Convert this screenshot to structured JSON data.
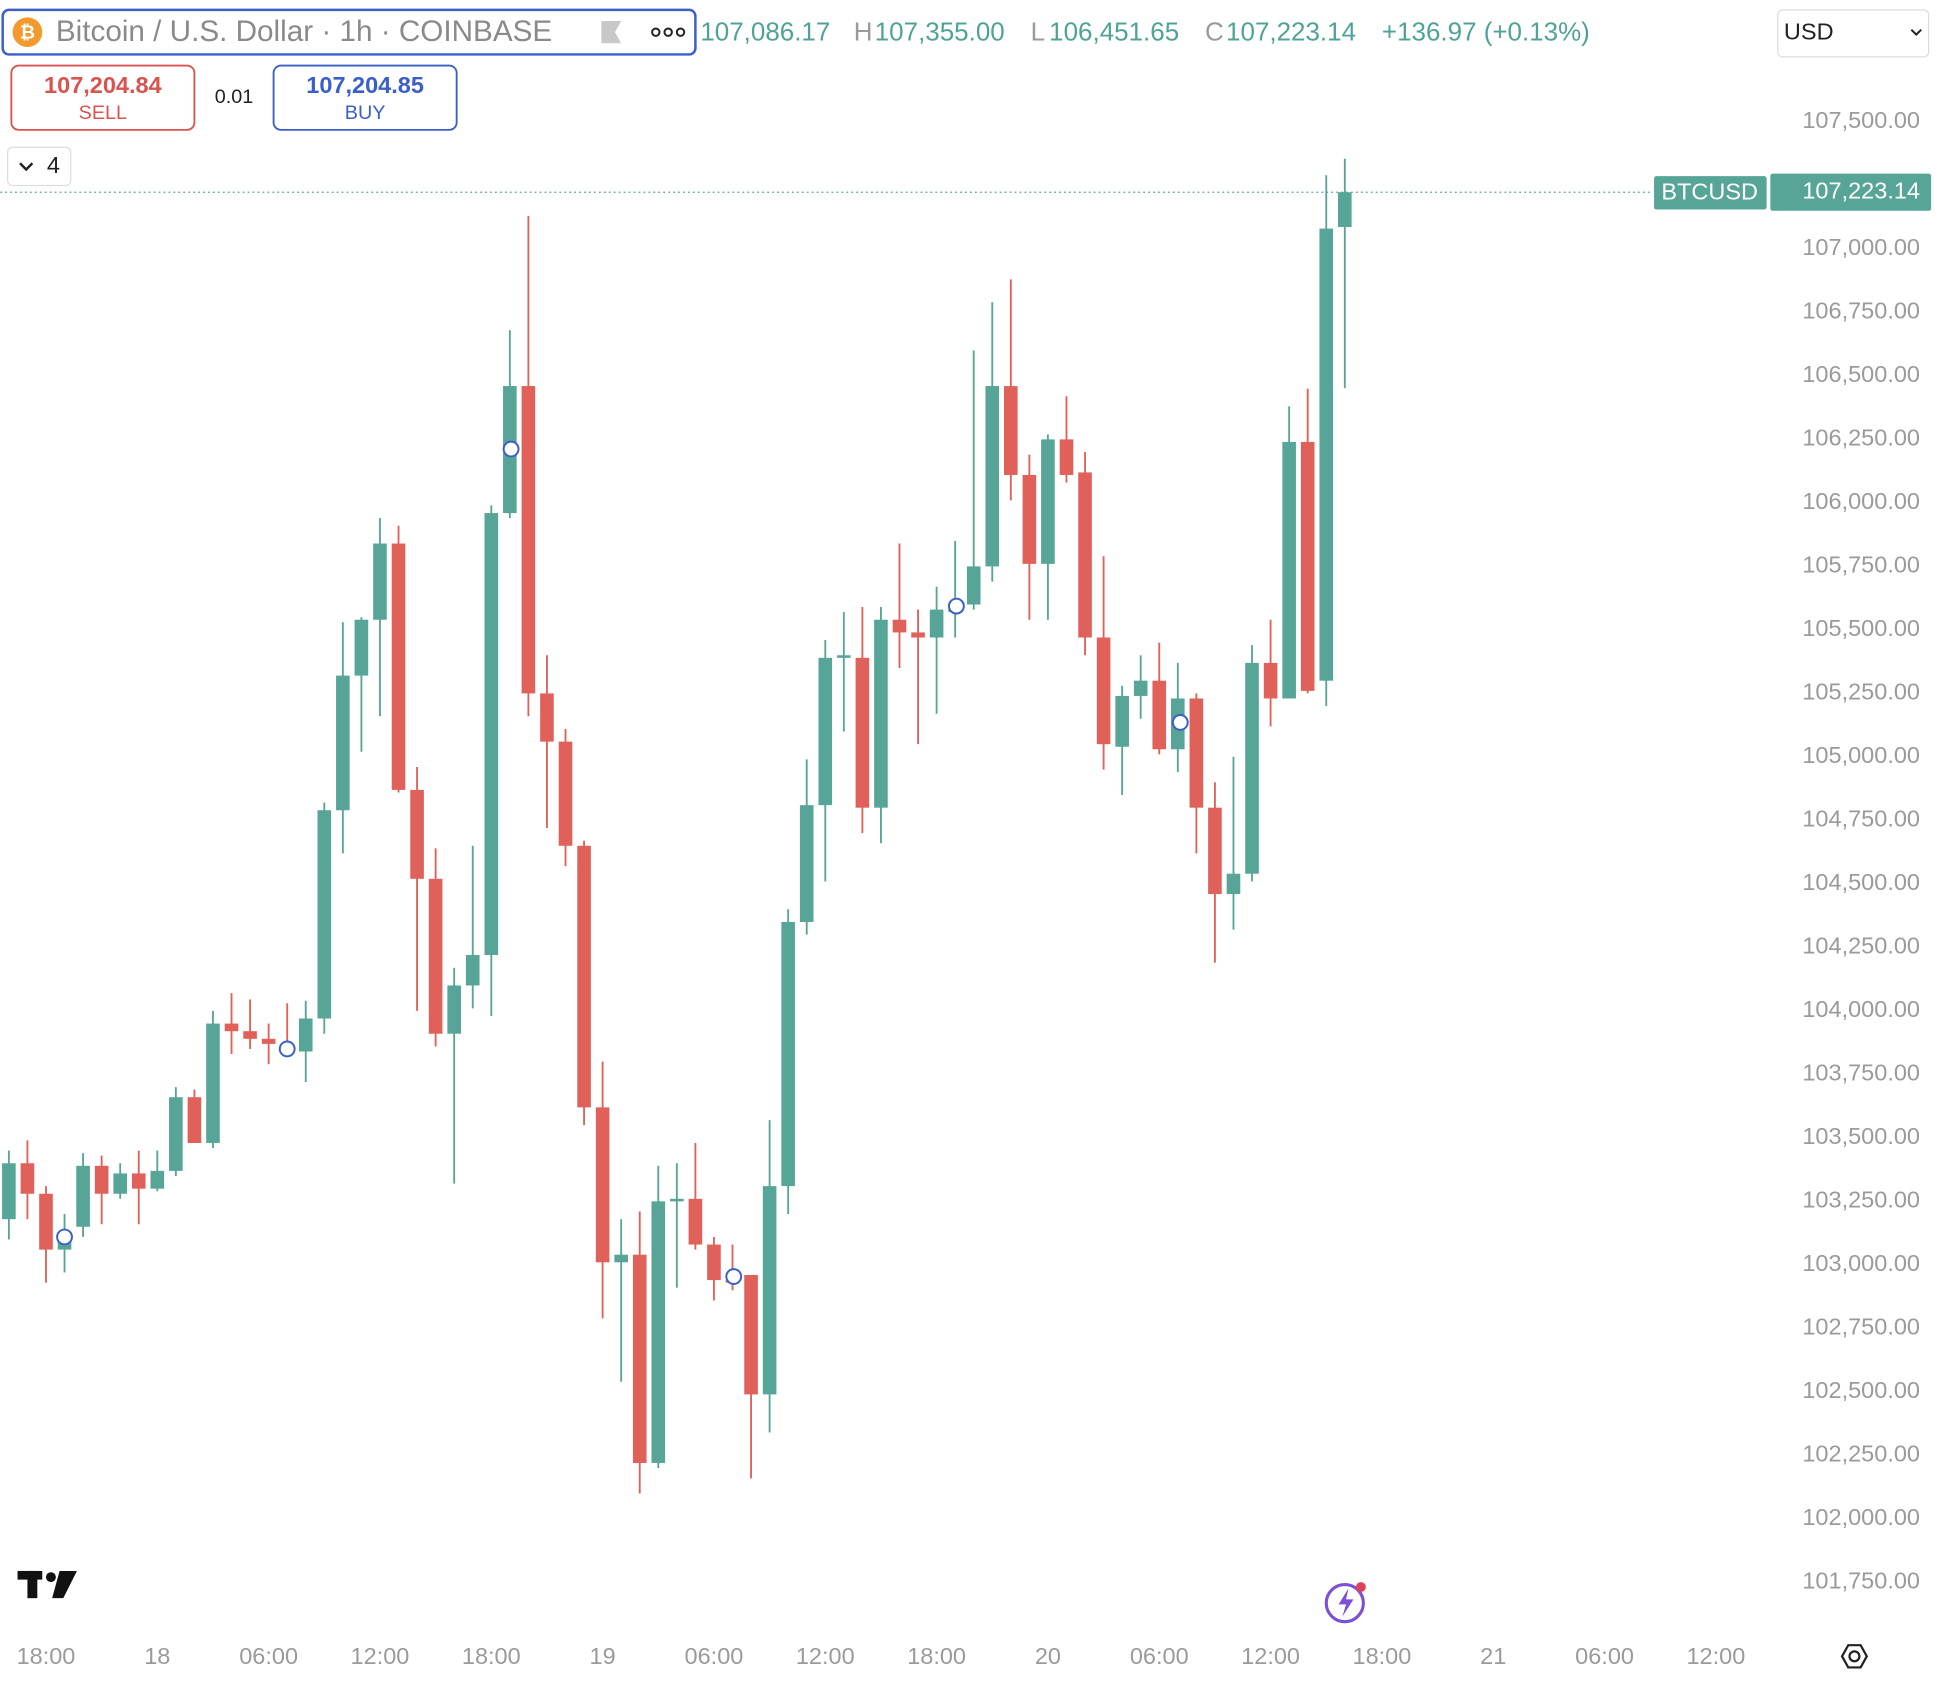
{
  "header": {
    "symbol": "Bitcoin / U.S. Dollar · 1h · COINBASE",
    "legend": [
      "107,086.17",
      "H",
      "107,355.00",
      "L",
      "106,451.65",
      "C",
      "107,223.14",
      "+136.97 (+0.13%)"
    ],
    "sell_price": "107,204.84",
    "sell": "SELL",
    "spread": "0.01",
    "buy_price": "107,204.85",
    "buy": "BUY",
    "indicators": "4",
    "currency": "USD"
  },
  "chart_data": {
    "type": "candlestick",
    "symbol_label": "BTCUSD",
    "last_price_label": "107,223.14",
    "up_color": "#57a597",
    "down_color": "#e0605a",
    "categories": [
      null,
      null,
      "18:00",
      null,
      null,
      null,
      null,
      null,
      "18",
      null,
      null,
      null,
      null,
      null,
      "06:00",
      null,
      null,
      null,
      null,
      null,
      "12:00",
      null,
      null,
      null,
      null,
      null,
      "18:00",
      null,
      null,
      null,
      null,
      null,
      "19",
      null,
      null,
      null,
      null,
      null,
      "06:00",
      null,
      null,
      null,
      null,
      null,
      "12:00",
      null,
      null,
      null,
      null,
      null,
      "18:00",
      null,
      null,
      null,
      null,
      null,
      "20",
      null,
      null,
      null,
      null,
      null,
      "06:00",
      null,
      null,
      null,
      null,
      null,
      "12:00",
      null,
      null,
      null,
      null,
      null,
      "18:00",
      null,
      null,
      null,
      null,
      null,
      "21",
      null,
      null,
      null,
      null,
      null,
      "06:00",
      null,
      null,
      null,
      null,
      null,
      "12:00"
    ],
    "open": [
      103180,
      103400,
      103280,
      103060,
      103150,
      103390,
      103280,
      103360,
      103300,
      103370,
      103660,
      103480,
      103950,
      103920,
      103890,
      103870,
      103840,
      103970,
      104790,
      105320,
      105540,
      105840,
      104870,
      104520,
      103910,
      104100,
      104220,
      105960,
      106460,
      105250,
      105060,
      104650,
      103620,
      103010,
      103040,
      102220,
      103250,
      103260,
      103080,
      102940,
      102960,
      102490,
      103310,
      104350,
      104810,
      105390,
      105390,
      104800,
      105540,
      105490,
      105470,
      105570,
      105600,
      105750,
      106460,
      106110,
      105760,
      106250,
      106120,
      105470,
      105040,
      105240,
      105300,
      105030,
      105230,
      104800,
      104460,
      104540,
      105370,
      105230,
      106240,
      105300,
      107086.17,
      null,
      null,
      null,
      null,
      null,
      null,
      null,
      null,
      null,
      null,
      null,
      null,
      null,
      null,
      null,
      null,
      null,
      null,
      null,
      null
    ],
    "high": [
      103450,
      103490,
      103310,
      103200,
      103440,
      103430,
      103400,
      103450,
      103450,
      103700,
      103690,
      104000,
      104070,
      104045,
      103950,
      104030,
      104040,
      104820,
      105530,
      105550,
      105940,
      105910,
      104960,
      104640,
      104170,
      104650,
      105990,
      106680,
      107130,
      105400,
      105110,
      104670,
      103800,
      103180,
      103210,
      103390,
      103400,
      103480,
      103110,
      103080,
      102960,
      103570,
      104400,
      104990,
      105460,
      105570,
      105590,
      105590,
      105840,
      105580,
      105670,
      105850,
      106600,
      106790,
      106880,
      106190,
      106270,
      106420,
      106200,
      105790,
      105280,
      105400,
      105450,
      105370,
      105250,
      104900,
      105000,
      105440,
      105540,
      106380,
      106450,
      107290,
      107355,
      null,
      null,
      null,
      null,
      null,
      null,
      null,
      null,
      null,
      null,
      null,
      null,
      null,
      null,
      null,
      null,
      null,
      null,
      null,
      null
    ],
    "low": [
      103100,
      103180,
      102930,
      102970,
      103110,
      103160,
      103260,
      103160,
      103290,
      103350,
      103480,
      103460,
      103830,
      103850,
      103790,
      103830,
      103720,
      103910,
      104620,
      105020,
      105160,
      104860,
      104000,
      103860,
      103320,
      104010,
      103980,
      105940,
      105160,
      104720,
      104570,
      103550,
      102790,
      102540,
      102100,
      102200,
      102910,
      103060,
      102860,
      102900,
      102160,
      102340,
      103200,
      104300,
      104510,
      105100,
      104700,
      104660,
      105350,
      105050,
      105170,
      105470,
      105580,
      105690,
      106010,
      105540,
      105540,
      106080,
      105400,
      104950,
      104850,
      105150,
      105010,
      104940,
      104620,
      104190,
      104320,
      104510,
      105120,
      105230,
      105250,
      105200,
      106451.65,
      null,
      null,
      null,
      null,
      null,
      null,
      null,
      null,
      null,
      null,
      null,
      null,
      null,
      null,
      null,
      null,
      null,
      null,
      null,
      null
    ],
    "close": [
      103400,
      103280,
      103060,
      103130,
      103390,
      103280,
      103360,
      103300,
      103370,
      103660,
      103480,
      103950,
      103920,
      103890,
      103870,
      103850,
      103970,
      104790,
      105320,
      105540,
      105840,
      104870,
      104520,
      103910,
      104100,
      104220,
      105960,
      106460,
      105250,
      105060,
      104650,
      103620,
      103010,
      103040,
      102220,
      103250,
      103260,
      103080,
      102940,
      102930,
      102490,
      103310,
      104350,
      104810,
      105390,
      105400,
      104800,
      105540,
      105490,
      105470,
      105580,
      105600,
      105750,
      106460,
      106110,
      105760,
      106250,
      106110,
      105470,
      105050,
      105240,
      105300,
      105030,
      105230,
      104800,
      104460,
      104540,
      105370,
      105230,
      106240,
      105260,
      107080,
      107223.14,
      null,
      null,
      null,
      null,
      null,
      null,
      null,
      null,
      null,
      null,
      null,
      null,
      null,
      null,
      null,
      null,
      null,
      null,
      null,
      null
    ],
    "ylim": [
      101600,
      107980
    ],
    "yticks": [
      {
        "value": 101750,
        "label": "101,750.00"
      },
      {
        "value": 102000,
        "label": "102,000.00"
      },
      {
        "value": 102250,
        "label": "102,250.00"
      },
      {
        "value": 102500,
        "label": "102,500.00"
      },
      {
        "value": 102750,
        "label": "102,750.00"
      },
      {
        "value": 103000,
        "label": "103,000.00"
      },
      {
        "value": 103250,
        "label": "103,250.00"
      },
      {
        "value": 103500,
        "label": "103,500.00"
      },
      {
        "value": 103750,
        "label": "103,750.00"
      },
      {
        "value": 104000,
        "label": "104,000.00"
      },
      {
        "value": 104250,
        "label": "104,250.00"
      },
      {
        "value": 104500,
        "label": "104,500.00"
      },
      {
        "value": 104750,
        "label": "104,750.00"
      },
      {
        "value": 105000,
        "label": "105,000.00"
      },
      {
        "value": 105250,
        "label": "105,250.00"
      },
      {
        "value": 105500,
        "label": "105,500.00"
      },
      {
        "value": 105750,
        "label": "105,750.00"
      },
      {
        "value": 106000,
        "label": "106,000.00"
      },
      {
        "value": 106250,
        "label": "106,250.00"
      },
      {
        "value": 106500,
        "label": "106,500.00"
      },
      {
        "value": 106750,
        "label": "106,750.00"
      },
      {
        "value": 107000,
        "label": "107,000.00"
      },
      {
        "value": 107250,
        "label": "107,250.00"
      },
      {
        "value": 107500,
        "label": "107,500.00"
      }
    ],
    "grid": false
  }
}
